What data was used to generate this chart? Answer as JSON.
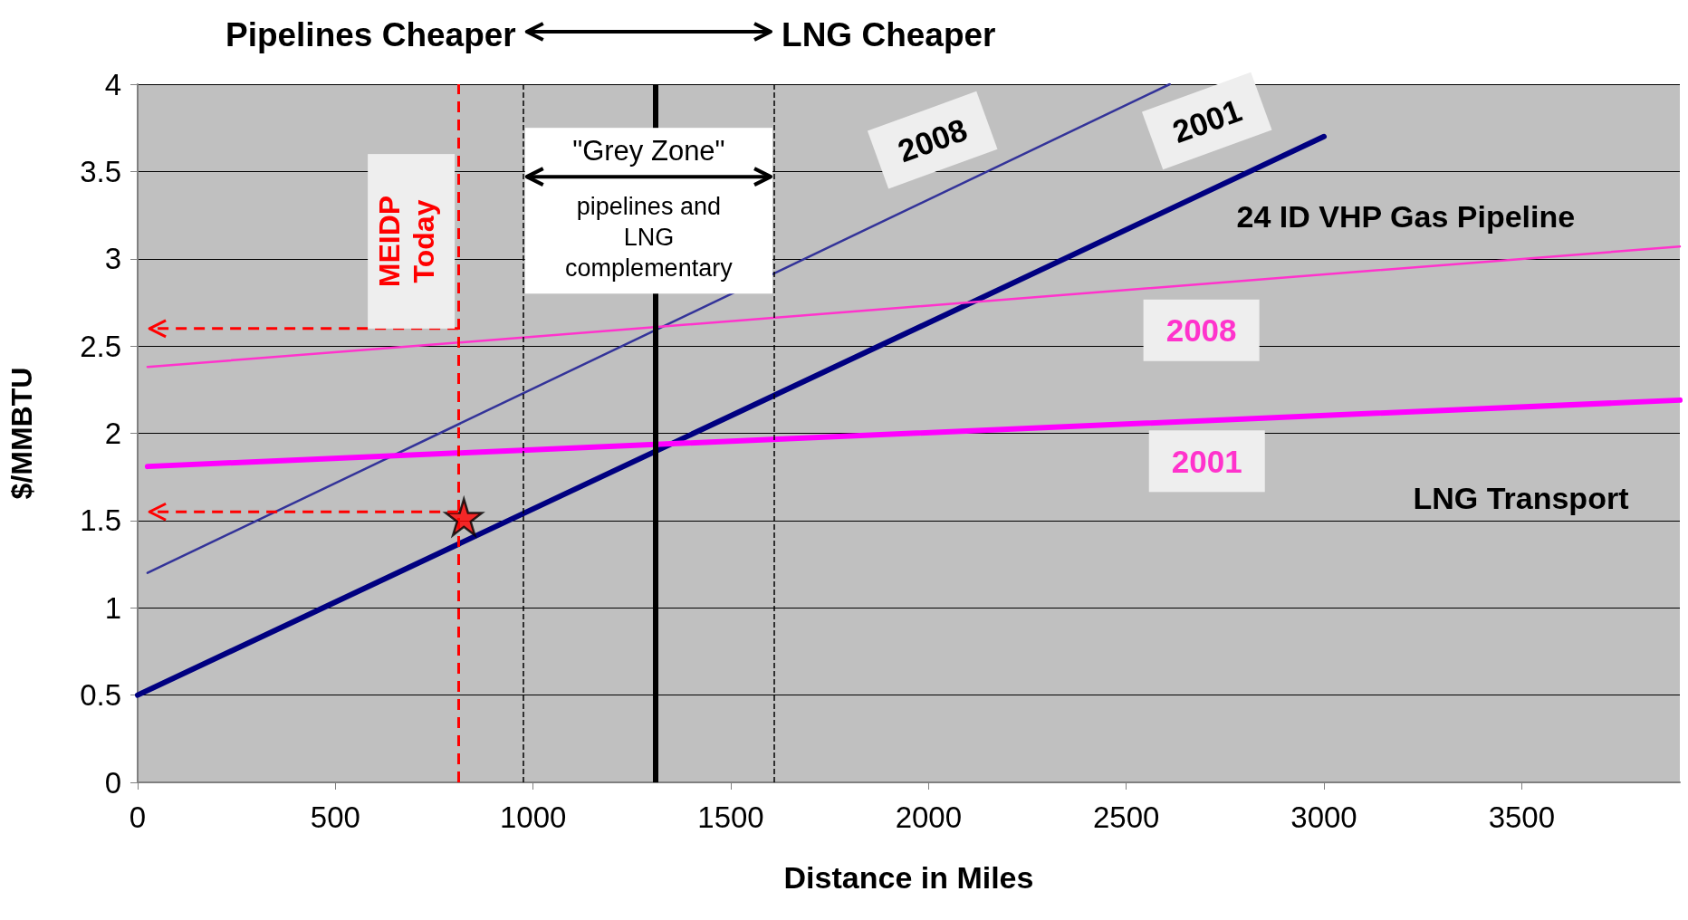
{
  "chart_data": {
    "type": "line",
    "xlabel": "Distance in Miles",
    "ylabel": "$/MMBTU",
    "xlim": [
      0,
      3900
    ],
    "xticks": [
      0,
      500,
      1000,
      1500,
      2000,
      2500,
      3000,
      3500
    ],
    "ylim": [
      0,
      4
    ],
    "yticks": [
      0,
      0.5,
      1,
      1.5,
      2,
      2.5,
      3,
      3.5,
      4
    ],
    "grid": "y",
    "marker": "none",
    "line_style": "solid",
    "series": [
      {
        "color": "#000080",
        "x": [
          0,
          3000
        ],
        "values": [
          0.5,
          3.7
        ]
      },
      {
        "color": "#333399",
        "x": [
          25,
          2610
        ],
        "values": [
          1.2,
          4.0
        ]
      },
      {
        "color": "#ff00ff",
        "x": [
          25,
          3900
        ],
        "values": [
          1.81,
          2.19
        ]
      },
      {
        "color": "#ff33cc",
        "x": [
          25,
          3900
        ],
        "values": [
          2.38,
          3.07
        ]
      },
      {
        "type": "scatter",
        "marker": "star",
        "color": "#ff0000",
        "x": [
          825
        ],
        "values": [
          1.52
        ]
      }
    ],
    "ref_lines": [
      {
        "axis": "x",
        "value": 975,
        "color": "#000000",
        "line_style": "dashed"
      },
      {
        "axis": "x",
        "value": 1310,
        "color": "#000000",
        "line_style": "solid"
      },
      {
        "axis": "x",
        "value": 1610,
        "color": "#000000",
        "line_style": "dashed"
      },
      {
        "axis": "x",
        "value": 811,
        "color": "#ff0000",
        "line_style": "dashed",
        "label": "MEIDP Today"
      }
    ],
    "annotations": [
      "Pipelines Cheaper",
      "LNG Cheaper",
      "\"Grey Zone\"",
      "pipelines and LNG complementary",
      "2008",
      "2001",
      "24 ID VHP Gas Pipeline",
      "2008",
      "2001",
      "LNG Transport"
    ]
  }
}
